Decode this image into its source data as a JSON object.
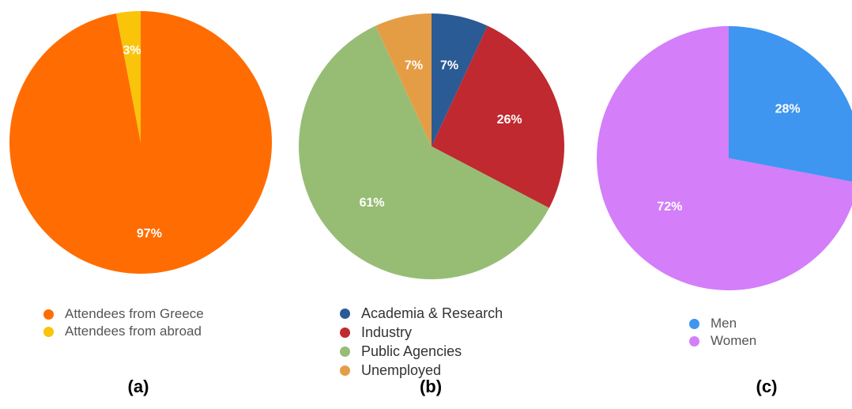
{
  "chart_data": [
    {
      "type": "pie",
      "panel_label": "(a)",
      "slices": [
        {
          "label": "Attendees from Greece",
          "value": 97,
          "display": "97%",
          "color": "#FF6D02"
        },
        {
          "label": "Attendees from abroad",
          "value": 3,
          "display": "3%",
          "color": "#F9C40A"
        }
      ],
      "start_offset_pct": 0,
      "legend_position": "bottom"
    },
    {
      "type": "pie",
      "panel_label": "(b)",
      "slices": [
        {
          "label": "Academia & Research",
          "value": 7,
          "display": "7%",
          "color": "#2B5B94"
        },
        {
          "label": "Industry",
          "value": 26,
          "display": "26%",
          "color": "#C0292F"
        },
        {
          "label": "Public Agencies",
          "value": 61,
          "display": "61%",
          "color": "#97BD75"
        },
        {
          "label": "Unemployed",
          "value": 7,
          "display": "7%",
          "color": "#E59D45"
        }
      ],
      "start_offset_pct": 0,
      "legend_position": "bottom"
    },
    {
      "type": "pie",
      "panel_label": "(c)",
      "slices": [
        {
          "label": "Men",
          "value": 28,
          "display": "28%",
          "color": "#3E96F0"
        },
        {
          "label": "Women",
          "value": 72,
          "display": "72%",
          "color": "#D47EF9"
        }
      ],
      "start_offset_pct": 0,
      "legend_position": "bottom"
    }
  ]
}
